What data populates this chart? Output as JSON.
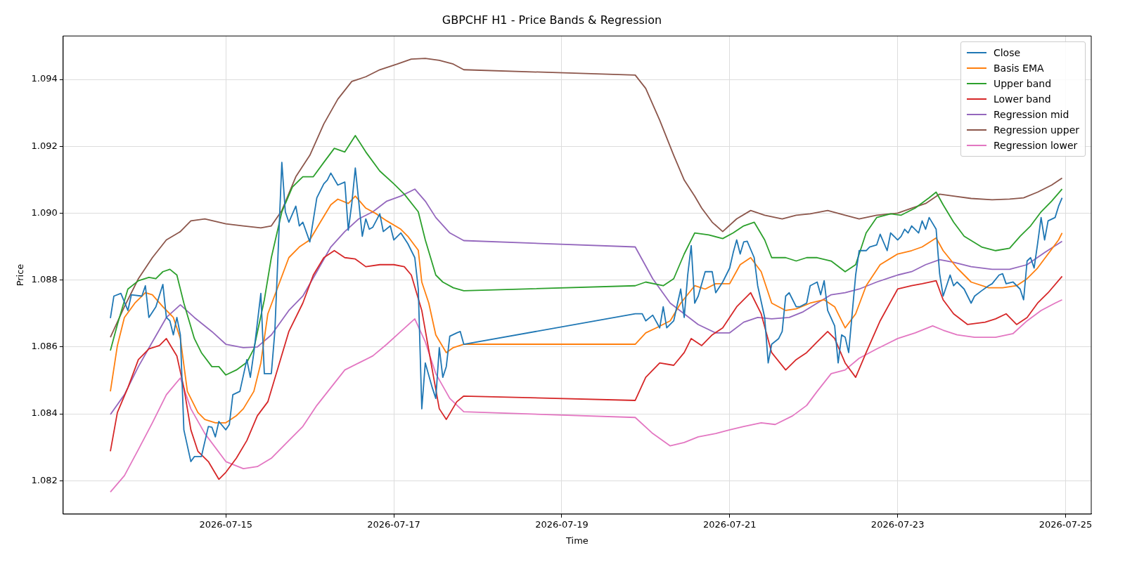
{
  "chart_data": {
    "type": "line",
    "title": "GBPCHF H1 - Price Bands & Regression",
    "xlabel": "Time",
    "ylabel": "Price",
    "xlim": [
      "2026-07-13T01:30",
      "2026-07-25T07:20"
    ],
    "xticks": [
      "2026-07-15",
      "2026-07-17",
      "2026-07-19",
      "2026-07-21",
      "2026-07-23",
      "2026-07-25"
    ],
    "ylim": [
      1.081,
      1.0953
    ],
    "yticks": [
      1.082,
      1.084,
      1.086,
      1.088,
      {
        "value": 1.09,
        "label": "1.090"
      },
      1.092,
      1.094
    ],
    "grid": true,
    "legend": "top right",
    "series": [
      {
        "name": "Close",
        "color": "#1f77b4",
        "x": [
          "2026-07-13T15:00",
          "2026-07-13T16:00",
          "2026-07-13T18:00",
          "2026-07-13T20:00",
          "2026-07-13T21:00",
          "2026-07-14T00:00",
          "2026-07-14T01:00",
          "2026-07-14T02:00",
          "2026-07-14T04:00",
          "2026-07-14T06:00",
          "2026-07-14T07:00",
          "2026-07-14T08:00",
          "2026-07-14T09:00",
          "2026-07-14T10:00",
          "2026-07-14T11:00",
          "2026-07-14T12:00",
          "2026-07-14T14:00",
          "2026-07-14T15:00",
          "2026-07-14T17:00",
          "2026-07-14T19:00",
          "2026-07-14T20:00",
          "2026-07-14T21:00",
          "2026-07-14T22:00",
          "2026-07-15T00:00",
          "2026-07-15T01:00",
          "2026-07-15T02:00",
          "2026-07-15T04:00",
          "2026-07-15T06:00",
          "2026-07-15T07:00",
          "2026-07-15T08:00",
          "2026-07-15T10:00",
          "2026-07-15T11:00",
          "2026-07-15T13:00",
          "2026-07-15T14:00",
          "2026-07-15T16:00",
          "2026-07-15T17:00",
          "2026-07-15T18:00",
          "2026-07-15T20:00",
          "2026-07-15T21:00",
          "2026-07-15T22:00",
          "2026-07-16T00:00",
          "2026-07-16T02:00",
          "2026-07-16T04:00",
          "2026-07-16T05:00",
          "2026-07-16T06:00",
          "2026-07-16T08:00",
          "2026-07-16T10:00",
          "2026-07-16T11:00",
          "2026-07-16T12:00",
          "2026-07-16T13:00",
          "2026-07-16T15:00",
          "2026-07-16T16:00",
          "2026-07-16T17:00",
          "2026-07-16T18:00",
          "2026-07-16T20:00",
          "2026-07-16T21:00",
          "2026-07-16T23:00",
          "2026-07-17T00:00",
          "2026-07-17T02:00",
          "2026-07-17T04:00",
          "2026-07-17T06:00",
          "2026-07-17T07:00",
          "2026-07-17T08:00",
          "2026-07-17T09:00",
          "2026-07-17T11:00",
          "2026-07-17T12:00",
          "2026-07-17T13:00",
          "2026-07-17T14:00",
          "2026-07-17T15:00",
          "2026-07-17T16:00",
          "2026-07-17T18:00",
          "2026-07-17T19:00",
          "2026-07-17T20:00",
          "2026-07-19T21:00",
          "2026-07-19T23:00",
          "2026-07-20T00:00",
          "2026-07-20T02:00",
          "2026-07-20T04:00",
          "2026-07-20T05:00",
          "2026-07-20T06:00",
          "2026-07-20T08:00",
          "2026-07-20T10:00",
          "2026-07-20T11:00",
          "2026-07-20T12:00",
          "2026-07-20T13:00",
          "2026-07-20T14:00",
          "2026-07-20T15:00",
          "2026-07-20T17:00",
          "2026-07-20T19:00",
          "2026-07-20T20:00",
          "2026-07-20T22:00",
          "2026-07-21T00:00",
          "2026-07-21T01:00",
          "2026-07-21T02:00",
          "2026-07-21T03:00",
          "2026-07-21T04:00",
          "2026-07-21T05:00",
          "2026-07-21T07:00",
          "2026-07-21T08:00",
          "2026-07-21T10:00",
          "2026-07-21T11:00",
          "2026-07-21T12:00",
          "2026-07-21T14:00",
          "2026-07-21T15:00",
          "2026-07-21T16:00",
          "2026-07-21T17:00",
          "2026-07-21T19:00",
          "2026-07-21T20:00",
          "2026-07-21T22:00",
          "2026-07-21T23:00",
          "2026-07-22T01:00",
          "2026-07-22T02:00",
          "2026-07-22T03:00",
          "2026-07-22T04:00",
          "2026-07-22T06:00",
          "2026-07-22T07:00",
          "2026-07-22T08:00",
          "2026-07-22T09:00",
          "2026-07-22T10:00",
          "2026-07-22T12:00",
          "2026-07-22T13:00",
          "2026-07-22T15:00",
          "2026-07-22T16:00",
          "2026-07-22T18:00",
          "2026-07-22T19:00",
          "2026-07-22T21:00",
          "2026-07-22T22:00",
          "2026-07-23T00:00",
          "2026-07-23T01:00",
          "2026-07-23T02:00",
          "2026-07-23T03:00",
          "2026-07-23T04:00",
          "2026-07-23T06:00",
          "2026-07-23T07:00",
          "2026-07-23T08:00",
          "2026-07-23T09:00",
          "2026-07-23T11:00",
          "2026-07-23T12:00",
          "2026-07-23T13:00",
          "2026-07-23T15:00",
          "2026-07-23T16:00",
          "2026-07-23T17:00",
          "2026-07-23T19:00",
          "2026-07-23T21:00",
          "2026-07-23T22:00",
          "2026-07-24T00:00",
          "2026-07-24T02:00",
          "2026-07-24T03:00",
          "2026-07-24T05:00",
          "2026-07-24T06:00",
          "2026-07-24T07:00",
          "2026-07-24T09:00",
          "2026-07-24T11:00",
          "2026-07-24T12:00",
          "2026-07-24T13:00",
          "2026-07-24T14:00",
          "2026-07-24T15:00",
          "2026-07-24T16:00",
          "2026-07-24T17:00",
          "2026-07-24T18:00",
          "2026-07-24T19:00",
          "2026-07-24T21:00",
          "2026-07-24T22:00",
          "2026-07-24T23:00"
        ],
        "values": [
          1.08686,
          1.08752,
          1.0876,
          1.08709,
          1.08756,
          1.08752,
          1.08783,
          1.08688,
          1.0872,
          1.08787,
          1.08688,
          1.08678,
          1.08636,
          1.08688,
          1.08636,
          1.08352,
          1.08257,
          1.08272,
          1.08272,
          1.08362,
          1.0836,
          1.08331,
          1.08377,
          1.08352,
          1.08368,
          1.08457,
          1.08467,
          1.08562,
          1.08509,
          1.08583,
          1.0876,
          1.0852,
          1.0852,
          1.08646,
          1.09152,
          1.09004,
          1.08973,
          1.09021,
          1.08962,
          1.08973,
          1.08914,
          1.09046,
          1.09088,
          1.09099,
          1.0912,
          1.09084,
          1.09093,
          1.08949,
          1.09029,
          1.09135,
          1.08931,
          1.08983,
          1.08952,
          1.08958,
          1.08998,
          1.08945,
          1.08962,
          1.0892,
          1.08941,
          1.08909,
          1.08867,
          1.08773,
          1.08415,
          1.08552,
          1.08478,
          1.08446,
          1.08598,
          1.08509,
          1.08541,
          1.08632,
          1.08642,
          1.08646,
          1.08608,
          1.08699,
          1.08699,
          1.08678,
          1.08695,
          1.08657,
          1.0872,
          1.08657,
          1.08678,
          1.08773,
          1.08688,
          1.08815,
          1.08903,
          1.08731,
          1.08752,
          1.08825,
          1.08825,
          1.08762,
          1.08794,
          1.08836,
          1.08882,
          1.0892,
          1.08878,
          1.08914,
          1.08916,
          1.08867,
          1.08783,
          1.08688,
          1.08552,
          1.08608,
          1.08625,
          1.08646,
          1.08752,
          1.08762,
          1.0872,
          1.0872,
          1.08731,
          1.08783,
          1.08794,
          1.08756,
          1.08798,
          1.08709,
          1.08663,
          1.08552,
          1.08636,
          1.08629,
          1.08583,
          1.08815,
          1.08888,
          1.08888,
          1.08899,
          1.08905,
          1.08937,
          1.08888,
          1.08941,
          1.0892,
          1.08931,
          1.08952,
          1.08941,
          1.08962,
          1.08941,
          1.08977,
          1.08952,
          1.08987,
          1.08952,
          1.08819,
          1.08752,
          1.08815,
          1.08783,
          1.08794,
          1.08773,
          1.08731,
          1.08752,
          1.08768,
          1.08783,
          1.08789,
          1.08815,
          1.08819,
          1.08789,
          1.08794,
          1.08773,
          1.08741,
          1.08857,
          1.08867,
          1.08836,
          1.08909,
          1.08987,
          1.0892,
          1.08977,
          1.08987,
          1.09021,
          1.09046
        ]
      },
      {
        "name": "Basis EMA",
        "color": "#ff7f0e",
        "x": [
          "2026-07-13T15:00",
          "2026-07-13T17:00",
          "2026-07-13T19:00",
          "2026-07-13T22:00",
          "2026-07-14T01:00",
          "2026-07-14T03:00",
          "2026-07-14T06:00",
          "2026-07-14T09:00",
          "2026-07-14T11:00",
          "2026-07-14T13:00",
          "2026-07-14T16:00",
          "2026-07-14T18:00",
          "2026-07-14T21:00",
          "2026-07-15T00:00",
          "2026-07-15T03:00",
          "2026-07-15T05:00",
          "2026-07-15T08:00",
          "2026-07-15T10:00",
          "2026-07-15T12:00",
          "2026-07-15T15:00",
          "2026-07-15T18:00",
          "2026-07-15T21:00",
          "2026-07-16T00:00",
          "2026-07-16T03:00",
          "2026-07-16T06:00",
          "2026-07-16T08:00",
          "2026-07-16T11:00",
          "2026-07-16T13:00",
          "2026-07-16T16:00",
          "2026-07-16T19:00",
          "2026-07-16T22:00",
          "2026-07-17T02:00",
          "2026-07-17T04:00",
          "2026-07-17T07:00",
          "2026-07-17T08:00",
          "2026-07-17T10:00",
          "2026-07-17T12:00",
          "2026-07-17T15:00",
          "2026-07-17T17:00",
          "2026-07-17T20:00",
          "2026-07-19T21:00",
          "2026-07-20T00:00",
          "2026-07-20T03:00",
          "2026-07-20T07:00",
          "2026-07-20T10:00",
          "2026-07-20T14:00",
          "2026-07-20T17:00",
          "2026-07-20T20:00",
          "2026-07-21T00:00",
          "2026-07-21T03:00",
          "2026-07-21T06:00",
          "2026-07-21T09:00",
          "2026-07-21T12:00",
          "2026-07-21T16:00",
          "2026-07-21T19:00",
          "2026-07-21T23:00",
          "2026-07-22T03:00",
          "2026-07-22T06:00",
          "2026-07-22T09:00",
          "2026-07-22T12:00",
          "2026-07-22T15:00",
          "2026-07-22T19:00",
          "2026-07-23T00:00",
          "2026-07-23T04:00",
          "2026-07-23T07:00",
          "2026-07-23T11:00",
          "2026-07-23T13:00",
          "2026-07-23T17:00",
          "2026-07-23T21:00",
          "2026-07-24T02:00",
          "2026-07-24T06:00",
          "2026-07-24T10:00",
          "2026-07-24T13:00",
          "2026-07-24T16:00",
          "2026-07-24T19:00",
          "2026-07-24T22:00",
          "2026-07-24T23:00"
        ],
        "values": [
          1.08467,
          1.08604,
          1.08688,
          1.08731,
          1.08762,
          1.08756,
          1.0872,
          1.08688,
          1.08625,
          1.08467,
          1.08404,
          1.08383,
          1.08373,
          1.08373,
          1.08394,
          1.08415,
          1.08467,
          1.08552,
          1.08699,
          1.08783,
          1.08867,
          1.08899,
          1.0892,
          1.08973,
          1.09025,
          1.09042,
          1.09029,
          1.09051,
          1.09015,
          1.08998,
          1.08977,
          1.08952,
          1.08931,
          1.08889,
          1.08794,
          1.08731,
          1.08636,
          1.08583,
          1.08598,
          1.08608,
          1.08608,
          1.08642,
          1.08657,
          1.08678,
          1.08731,
          1.08783,
          1.08773,
          1.08789,
          1.08789,
          1.08846,
          1.08867,
          1.08825,
          1.08731,
          1.08709,
          1.08714,
          1.08731,
          1.08741,
          1.0872,
          1.08657,
          1.08699,
          1.08783,
          1.08846,
          1.08878,
          1.08888,
          1.08899,
          1.08926,
          1.08888,
          1.08836,
          1.08794,
          1.08777,
          1.08777,
          1.08783,
          1.08804,
          1.08836,
          1.08878,
          1.0892,
          1.08941
        ]
      },
      {
        "name": "Upper band",
        "color": "#2ca02c",
        "x": [
          "2026-07-13T15:00",
          "2026-07-13T17:00",
          "2026-07-13T20:00",
          "2026-07-13T23:00",
          "2026-07-14T02:00",
          "2026-07-14T04:00",
          "2026-07-14T06:00",
          "2026-07-14T08:00",
          "2026-07-14T10:00",
          "2026-07-14T12:00",
          "2026-07-14T15:00",
          "2026-07-14T17:00",
          "2026-07-14T20:00",
          "2026-07-14T22:00",
          "2026-07-15T00:00",
          "2026-07-15T03:00",
          "2026-07-15T06:00",
          "2026-07-15T08:00",
          "2026-07-15T11:00",
          "2026-07-15T13:00",
          "2026-07-15T16:00",
          "2026-07-15T19:00",
          "2026-07-15T22:00",
          "2026-07-16T01:00",
          "2026-07-16T04:00",
          "2026-07-16T07:00",
          "2026-07-16T10:00",
          "2026-07-16T13:00",
          "2026-07-16T16:00",
          "2026-07-16T20:00",
          "2026-07-17T00:00",
          "2026-07-17T03:00",
          "2026-07-17T07:00",
          "2026-07-17T09:00",
          "2026-07-17T12:00",
          "2026-07-17T14:00",
          "2026-07-17T17:00",
          "2026-07-17T20:00",
          "2026-07-19T21:00",
          "2026-07-20T00:00",
          "2026-07-20T05:00",
          "2026-07-20T08:00",
          "2026-07-20T11:00",
          "2026-07-20T14:00",
          "2026-07-20T18:00",
          "2026-07-20T22:00",
          "2026-07-21T01:00",
          "2026-07-21T04:00",
          "2026-07-21T07:00",
          "2026-07-21T10:00",
          "2026-07-21T12:00",
          "2026-07-21T16:00",
          "2026-07-21T19:00",
          "2026-07-21T22:00",
          "2026-07-22T01:00",
          "2026-07-22T05:00",
          "2026-07-22T09:00",
          "2026-07-22T12:00",
          "2026-07-22T15:00",
          "2026-07-22T18:00",
          "2026-07-22T22:00",
          "2026-07-23T01:00",
          "2026-07-23T05:00",
          "2026-07-23T09:00",
          "2026-07-23T11:00",
          "2026-07-23T13:00",
          "2026-07-23T16:00",
          "2026-07-23T19:00",
          "2026-07-24T00:00",
          "2026-07-24T04:00",
          "2026-07-24T08:00",
          "2026-07-24T11:00",
          "2026-07-24T14:00",
          "2026-07-24T17:00",
          "2026-07-24T20:00",
          "2026-07-24T23:00"
        ],
        "values": [
          1.08589,
          1.08667,
          1.08773,
          1.08798,
          1.08808,
          1.08804,
          1.08825,
          1.08832,
          1.08815,
          1.08731,
          1.08625,
          1.08583,
          1.08541,
          1.08541,
          1.08516,
          1.08531,
          1.08554,
          1.08594,
          1.08741,
          1.08867,
          1.09004,
          1.09078,
          1.09109,
          1.09109,
          1.09152,
          1.09194,
          1.09183,
          1.09232,
          1.09183,
          1.09126,
          1.09088,
          1.09057,
          1.09004,
          1.0892,
          1.08815,
          1.08794,
          1.08777,
          1.08768,
          1.08783,
          1.08794,
          1.08783,
          1.08804,
          1.08878,
          1.08941,
          1.08935,
          1.08924,
          1.08941,
          1.08962,
          1.08973,
          1.0892,
          1.08867,
          1.08867,
          1.08857,
          1.08867,
          1.08867,
          1.08857,
          1.08825,
          1.08846,
          1.08941,
          1.08987,
          1.08998,
          1.08994,
          1.09015,
          1.09046,
          1.09063,
          1.09025,
          1.08973,
          1.08931,
          1.08899,
          1.08888,
          1.08895,
          1.08931,
          1.08962,
          1.09004,
          1.09036,
          1.09072
        ]
      },
      {
        "name": "Lower band",
        "color": "#d62728",
        "x": [
          "2026-07-13T15:00",
          "2026-07-13T17:00",
          "2026-07-13T20:00",
          "2026-07-13T23:00",
          "2026-07-14T02:00",
          "2026-07-14T05:00",
          "2026-07-14T07:00",
          "2026-07-14T10:00",
          "2026-07-14T12:00",
          "2026-07-14T14:00",
          "2026-07-14T16:00",
          "2026-07-14T19:00",
          "2026-07-14T22:00",
          "2026-07-15T00:00",
          "2026-07-15T03:00",
          "2026-07-15T06:00",
          "2026-07-15T09:00",
          "2026-07-15T12:00",
          "2026-07-15T15:00",
          "2026-07-15T18:00",
          "2026-07-15T22:00",
          "2026-07-16T01:00",
          "2026-07-16T04:00",
          "2026-07-16T07:00",
          "2026-07-16T10:00",
          "2026-07-16T13:00",
          "2026-07-16T16:00",
          "2026-07-16T20:00",
          "2026-07-17T00:00",
          "2026-07-17T03:00",
          "2026-07-17T05:00",
          "2026-07-17T08:00",
          "2026-07-17T11:00",
          "2026-07-17T13:00",
          "2026-07-17T15:00",
          "2026-07-17T18:00",
          "2026-07-17T20:00",
          "2026-07-19T21:00",
          "2026-07-20T00:00",
          "2026-07-20T04:00",
          "2026-07-20T08:00",
          "2026-07-20T11:00",
          "2026-07-20T13:00",
          "2026-07-20T16:00",
          "2026-07-20T19:00",
          "2026-07-20T22:00",
          "2026-07-21T02:00",
          "2026-07-21T06:00",
          "2026-07-21T09:00",
          "2026-07-21T12:00",
          "2026-07-21T16:00",
          "2026-07-21T19:00",
          "2026-07-21T22:00",
          "2026-07-22T01:00",
          "2026-07-22T04:00",
          "2026-07-22T06:00",
          "2026-07-22T09:00",
          "2026-07-22T12:00",
          "2026-07-22T15:00",
          "2026-07-22T19:00",
          "2026-07-23T00:00",
          "2026-07-23T04:00",
          "2026-07-23T07:00",
          "2026-07-23T11:00",
          "2026-07-23T13:00",
          "2026-07-23T16:00",
          "2026-07-23T20:00",
          "2026-07-24T01:00",
          "2026-07-24T04:00",
          "2026-07-24T07:00",
          "2026-07-24T10:00",
          "2026-07-24T13:00",
          "2026-07-24T16:00",
          "2026-07-24T19:00",
          "2026-07-24T23:00"
        ],
        "values": [
          1.08288,
          1.08404,
          1.08478,
          1.08562,
          1.08594,
          1.08604,
          1.08625,
          1.08573,
          1.08478,
          1.08352,
          1.08288,
          1.08257,
          1.08204,
          1.08225,
          1.08267,
          1.0832,
          1.08394,
          1.08436,
          1.08541,
          1.08646,
          1.08731,
          1.08815,
          1.08867,
          1.08888,
          1.08867,
          1.08863,
          1.0884,
          1.08846,
          1.08846,
          1.0884,
          1.08815,
          1.08709,
          1.08531,
          1.08415,
          1.08383,
          1.08436,
          1.08453,
          1.0844,
          1.08509,
          1.08552,
          1.08545,
          1.08583,
          1.08625,
          1.08604,
          1.08636,
          1.08657,
          1.0872,
          1.08762,
          1.08699,
          1.08583,
          1.08531,
          1.08562,
          1.08583,
          1.08615,
          1.08646,
          1.08625,
          1.08552,
          1.08509,
          1.08583,
          1.08678,
          1.08773,
          1.08783,
          1.08789,
          1.08798,
          1.08741,
          1.08699,
          1.08667,
          1.08674,
          1.08684,
          1.08699,
          1.08667,
          1.08688,
          1.08731,
          1.08762,
          1.08811
        ]
      },
      {
        "name": "Regression mid",
        "color": "#9467bd",
        "x": [
          "2026-07-13T15:00",
          "2026-07-13T19:00",
          "2026-07-13T23:00",
          "2026-07-14T03:00",
          "2026-07-14T07:00",
          "2026-07-14T11:00",
          "2026-07-14T15:00",
          "2026-07-14T20:00",
          "2026-07-15T00:00",
          "2026-07-15T05:00",
          "2026-07-15T09:00",
          "2026-07-15T13:00",
          "2026-07-15T18:00",
          "2026-07-15T22:00",
          "2026-07-16T02:00",
          "2026-07-16T06:00",
          "2026-07-16T10:00",
          "2026-07-16T14:00",
          "2026-07-16T18:00",
          "2026-07-16T22:00",
          "2026-07-17T02:00",
          "2026-07-17T06:00",
          "2026-07-17T09:00",
          "2026-07-17T12:00",
          "2026-07-17T16:00",
          "2026-07-17T20:00",
          "2026-07-19T21:00",
          "2026-07-20T02:00",
          "2026-07-20T07:00",
          "2026-07-20T11:00",
          "2026-07-20T15:00",
          "2026-07-20T20:00",
          "2026-07-21T00:00",
          "2026-07-21T04:00",
          "2026-07-21T08:00",
          "2026-07-21T12:00",
          "2026-07-21T17:00",
          "2026-07-21T21:00",
          "2026-07-22T01:00",
          "2026-07-22T05:00",
          "2026-07-22T09:00",
          "2026-07-22T13:00",
          "2026-07-22T18:00",
          "2026-07-23T00:00",
          "2026-07-23T04:00",
          "2026-07-23T08:00",
          "2026-07-23T12:00",
          "2026-07-23T16:00",
          "2026-07-23T21:00",
          "2026-07-24T03:00",
          "2026-07-24T08:00",
          "2026-07-24T13:00",
          "2026-07-24T18:00",
          "2026-07-24T23:00"
        ],
        "values": [
          1.08398,
          1.08457,
          1.08541,
          1.08615,
          1.08688,
          1.08726,
          1.08688,
          1.08646,
          1.08608,
          1.08598,
          1.086,
          1.08636,
          1.08709,
          1.08752,
          1.08825,
          1.08899,
          1.08945,
          1.08983,
          1.09004,
          1.09036,
          1.09051,
          1.09072,
          1.09036,
          1.08987,
          1.08941,
          1.08918,
          1.08899,
          1.08804,
          1.08731,
          1.08699,
          1.08667,
          1.08642,
          1.08642,
          1.08674,
          1.08688,
          1.08684,
          1.08688,
          1.08705,
          1.08731,
          1.08756,
          1.08762,
          1.08773,
          1.08794,
          1.08815,
          1.08825,
          1.08846,
          1.08861,
          1.08853,
          1.0884,
          1.08832,
          1.08832,
          1.08846,
          1.08882,
          1.08916
        ]
      },
      {
        "name": "Regression upper",
        "color": "#8c564b",
        "x": [
          "2026-07-13T15:00",
          "2026-07-13T19:00",
          "2026-07-13T23:00",
          "2026-07-14T03:00",
          "2026-07-14T07:00",
          "2026-07-14T11:00",
          "2026-07-14T14:00",
          "2026-07-14T18:00",
          "2026-07-15T00:00",
          "2026-07-15T05:00",
          "2026-07-15T10:00",
          "2026-07-15T13:00",
          "2026-07-15T16:00",
          "2026-07-15T20:00",
          "2026-07-16T00:00",
          "2026-07-16T04:00",
          "2026-07-16T08:00",
          "2026-07-16T12:00",
          "2026-07-16T16:00",
          "2026-07-16T20:00",
          "2026-07-17T01:00",
          "2026-07-17T05:00",
          "2026-07-17T09:00",
          "2026-07-17T13:00",
          "2026-07-17T17:00",
          "2026-07-17T20:00",
          "2026-07-19T21:00",
          "2026-07-20T00:00",
          "2026-07-20T04:00",
          "2026-07-20T08:00",
          "2026-07-20T11:00",
          "2026-07-20T14:00",
          "2026-07-20T16:00",
          "2026-07-20T19:00",
          "2026-07-20T22:00",
          "2026-07-21T02:00",
          "2026-07-21T06:00",
          "2026-07-21T10:00",
          "2026-07-21T15:00",
          "2026-07-21T19:00",
          "2026-07-21T23:00",
          "2026-07-22T04:00",
          "2026-07-22T09:00",
          "2026-07-22T13:00",
          "2026-07-22T18:00",
          "2026-07-23T00:00",
          "2026-07-23T04:00",
          "2026-07-23T08:00",
          "2026-07-23T12:00",
          "2026-07-23T16:00",
          "2026-07-23T21:00",
          "2026-07-24T03:00",
          "2026-07-24T08:00",
          "2026-07-24T12:00",
          "2026-07-24T16:00",
          "2026-07-24T20:00",
          "2026-07-24T23:00"
        ],
        "values": [
          1.08629,
          1.0872,
          1.08804,
          1.08867,
          1.0892,
          1.08945,
          1.08977,
          1.08983,
          1.08968,
          1.08962,
          1.08956,
          1.08962,
          1.09008,
          1.09109,
          1.09173,
          1.09267,
          1.09341,
          1.09394,
          1.09408,
          1.09429,
          1.09446,
          1.09461,
          1.09463,
          1.09457,
          1.09446,
          1.09429,
          1.09413,
          1.09373,
          1.09278,
          1.09173,
          1.09099,
          1.09051,
          1.09015,
          1.08973,
          1.08945,
          1.08983,
          1.09008,
          1.08994,
          1.08983,
          1.08994,
          1.08998,
          1.09008,
          1.08994,
          1.08983,
          1.08994,
          1.09,
          1.09015,
          1.09029,
          1.09057,
          1.09051,
          1.09044,
          1.0904,
          1.09042,
          1.09046,
          1.09063,
          1.09084,
          1.09105
        ]
      },
      {
        "name": "Regression lower",
        "color": "#e377c2",
        "x": [
          "2026-07-13T15:00",
          "2026-07-13T19:00",
          "2026-07-13T23:00",
          "2026-07-14T03:00",
          "2026-07-14T07:00",
          "2026-07-14T11:00",
          "2026-07-14T14:00",
          "2026-07-14T18:00",
          "2026-07-15T00:00",
          "2026-07-15T05:00",
          "2026-07-15T09:00",
          "2026-07-15T13:00",
          "2026-07-15T18:00",
          "2026-07-15T22:00",
          "2026-07-16T02:00",
          "2026-07-16T06:00",
          "2026-07-16T10:00",
          "2026-07-16T14:00",
          "2026-07-16T18:00",
          "2026-07-16T22:00",
          "2026-07-17T02:00",
          "2026-07-17T06:00",
          "2026-07-17T09:00",
          "2026-07-17T12:00",
          "2026-07-17T16:00",
          "2026-07-17T20:00",
          "2026-07-19T21:00",
          "2026-07-20T02:00",
          "2026-07-20T07:00",
          "2026-07-20T11:00",
          "2026-07-20T15:00",
          "2026-07-20T20:00",
          "2026-07-21T00:00",
          "2026-07-21T04:00",
          "2026-07-21T09:00",
          "2026-07-21T13:00",
          "2026-07-21T18:00",
          "2026-07-21T22:00",
          "2026-07-22T01:00",
          "2026-07-22T05:00",
          "2026-07-22T09:00",
          "2026-07-22T13:00",
          "2026-07-22T18:00",
          "2026-07-23T00:00",
          "2026-07-23T05:00",
          "2026-07-23T10:00",
          "2026-07-23T13:00",
          "2026-07-23T17:00",
          "2026-07-23T22:00",
          "2026-07-24T04:00",
          "2026-07-24T09:00",
          "2026-07-24T13:00",
          "2026-07-24T17:00",
          "2026-07-24T21:00",
          "2026-07-24T23:00"
        ],
        "values": [
          1.08166,
          1.08215,
          1.08293,
          1.08373,
          1.08457,
          1.08507,
          1.08415,
          1.08341,
          1.08257,
          1.08236,
          1.08242,
          1.08267,
          1.0832,
          1.08362,
          1.08425,
          1.08478,
          1.08531,
          1.08552,
          1.08573,
          1.08608,
          1.08646,
          1.08684,
          1.08615,
          1.0852,
          1.08446,
          1.08406,
          1.08389,
          1.08341,
          1.08304,
          1.08314,
          1.08331,
          1.08341,
          1.08352,
          1.08362,
          1.08373,
          1.08368,
          1.08394,
          1.08425,
          1.08467,
          1.0852,
          1.08531,
          1.08566,
          1.08594,
          1.08625,
          1.08642,
          1.08663,
          1.0865,
          1.08636,
          1.08629,
          1.08629,
          1.0864,
          1.08678,
          1.08709,
          1.08731,
          1.08741
        ]
      }
    ]
  }
}
